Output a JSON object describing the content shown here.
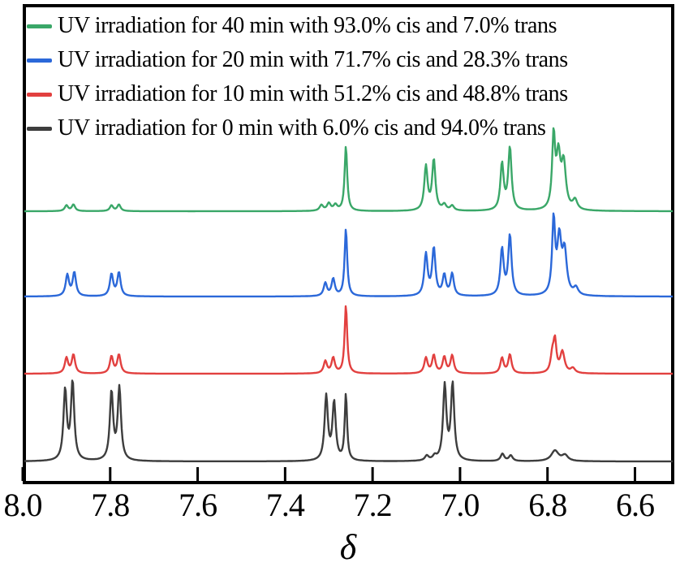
{
  "legend": {
    "items": [
      {
        "color": "#3aa768",
        "label": "UV irradiation for 40 min with 93.0% cis and 7.0% trans"
      },
      {
        "color": "#2b68d9",
        "label": "UV irradiation for 20 min with 71.7% cis and 28.3% trans"
      },
      {
        "color": "#e2403f",
        "label": "UV irradiation for 10 min with 51.2% cis and 48.8% trans"
      },
      {
        "color": "#3d3d3d",
        "label": "UV irradiation for 0 min with 6.0% cis and 94.0% trans"
      }
    ]
  },
  "chart_data": {
    "type": "line",
    "title": "",
    "xlabel": "δ",
    "ylabel": "",
    "description": "Stacked 1H NMR spectra (aromatic region) after UV irradiation; x axis is chemical shift delta in ppm, reversed from 8.0 to ~6.5; four offset traces, no y axis scale.",
    "x_axis": {
      "min": 6.51,
      "max": 8.0,
      "reversed": true,
      "tick_values": [
        8.0,
        7.8,
        7.6,
        7.4,
        7.2,
        7.0,
        6.8,
        6.6
      ],
      "tick_labels": [
        "8.0",
        "7.8",
        "7.6",
        "7.4",
        "7.2",
        "7.0",
        "6.8",
        "6.6"
      ]
    },
    "legend_position": "top-left inside frame",
    "grid": false,
    "series": [
      {
        "name": "UV irradiation for 40 min with 93.0% cis and 7.0% trans",
        "color": "#3aa768",
        "baseline_y": 260,
        "peaks_format": [
          "delta_ppm",
          "height_px",
          "halfwidth_ppm"
        ],
        "peaks": [
          [
            7.9,
            7,
            0.0045
          ],
          [
            7.884,
            8,
            0.0045
          ],
          [
            7.797,
            7,
            0.0045
          ],
          [
            7.78,
            8,
            0.0045
          ],
          [
            7.317,
            7,
            0.005
          ],
          [
            7.3,
            9,
            0.005
          ],
          [
            7.285,
            7,
            0.005
          ],
          [
            7.261,
            80,
            0.0035
          ],
          [
            7.078,
            54,
            0.0045
          ],
          [
            7.06,
            62,
            0.0045
          ],
          [
            7.036,
            7,
            0.005
          ],
          [
            7.018,
            6,
            0.005
          ],
          [
            6.904,
            57,
            0.0045
          ],
          [
            6.886,
            77,
            0.0045
          ],
          [
            6.786,
            88,
            0.004
          ],
          [
            6.775,
            62,
            0.0055
          ],
          [
            6.763,
            55,
            0.006
          ],
          [
            6.737,
            12,
            0.006
          ]
        ]
      },
      {
        "name": "UV irradiation for 20 min with 71.7% cis and 28.3% trans",
        "color": "#2b68d9",
        "baseline_y": 365,
        "peaks_format": [
          "delta_ppm",
          "height_px",
          "halfwidth_ppm"
        ],
        "peaks": [
          [
            7.898,
            26,
            0.0045
          ],
          [
            7.882,
            29,
            0.0045
          ],
          [
            7.797,
            27,
            0.0045
          ],
          [
            7.78,
            29,
            0.0045
          ],
          [
            7.308,
            16,
            0.0045
          ],
          [
            7.29,
            21,
            0.0045
          ],
          [
            7.261,
            83,
            0.0035
          ],
          [
            7.078,
            51,
            0.0045
          ],
          [
            7.06,
            58,
            0.0045
          ],
          [
            7.036,
            25,
            0.0045
          ],
          [
            7.018,
            27,
            0.0045
          ],
          [
            6.904,
            57,
            0.0045
          ],
          [
            6.886,
            74,
            0.0045
          ],
          [
            6.786,
            91,
            0.004
          ],
          [
            6.773,
            66,
            0.0055
          ],
          [
            6.761,
            52,
            0.006
          ],
          [
            6.735,
            9,
            0.006
          ]
        ]
      },
      {
        "name": "UV irradiation for 10 min with 51.2% cis and 48.8% trans",
        "color": "#e2403f",
        "baseline_y": 460,
        "peaks_format": [
          "delta_ppm",
          "height_px",
          "halfwidth_ppm"
        ],
        "peaks": [
          [
            7.9,
            19,
            0.0045
          ],
          [
            7.884,
            23,
            0.0045
          ],
          [
            7.797,
            21,
            0.0045
          ],
          [
            7.78,
            23,
            0.0045
          ],
          [
            7.308,
            15,
            0.0045
          ],
          [
            7.29,
            19,
            0.0045
          ],
          [
            7.261,
            84,
            0.0035
          ],
          [
            7.078,
            19,
            0.0045
          ],
          [
            7.06,
            22,
            0.0045
          ],
          [
            7.036,
            20,
            0.0045
          ],
          [
            7.018,
            22,
            0.0045
          ],
          [
            6.904,
            19,
            0.0045
          ],
          [
            6.886,
            23,
            0.0045
          ],
          [
            6.789,
            21,
            0.0045
          ],
          [
            6.783,
            37,
            0.004
          ],
          [
            6.766,
            26,
            0.006
          ],
          [
            6.742,
            6,
            0.006
          ]
        ]
      },
      {
        "name": "UV irradiation for 0 min with 6.0% cis and 94.0% trans",
        "color": "#3d3d3d",
        "baseline_y": 568,
        "peaks_format": [
          "delta_ppm",
          "height_px",
          "halfwidth_ppm"
        ],
        "peaks": [
          [
            7.903,
            86,
            0.0045
          ],
          [
            7.886,
            96,
            0.0045
          ],
          [
            7.797,
            84,
            0.0045
          ],
          [
            7.779,
            89,
            0.0045
          ],
          [
            7.306,
            79,
            0.0045
          ],
          [
            7.288,
            71,
            0.0045
          ],
          [
            7.261,
            82,
            0.0032
          ],
          [
            7.076,
            6,
            0.005
          ],
          [
            7.058,
            5,
            0.005
          ],
          [
            7.035,
            92,
            0.0045
          ],
          [
            7.017,
            94,
            0.0045
          ],
          [
            6.903,
            9,
            0.005
          ],
          [
            6.884,
            7,
            0.005
          ],
          [
            6.783,
            13,
            0.01
          ],
          [
            6.76,
            7,
            0.008
          ]
        ]
      }
    ]
  }
}
